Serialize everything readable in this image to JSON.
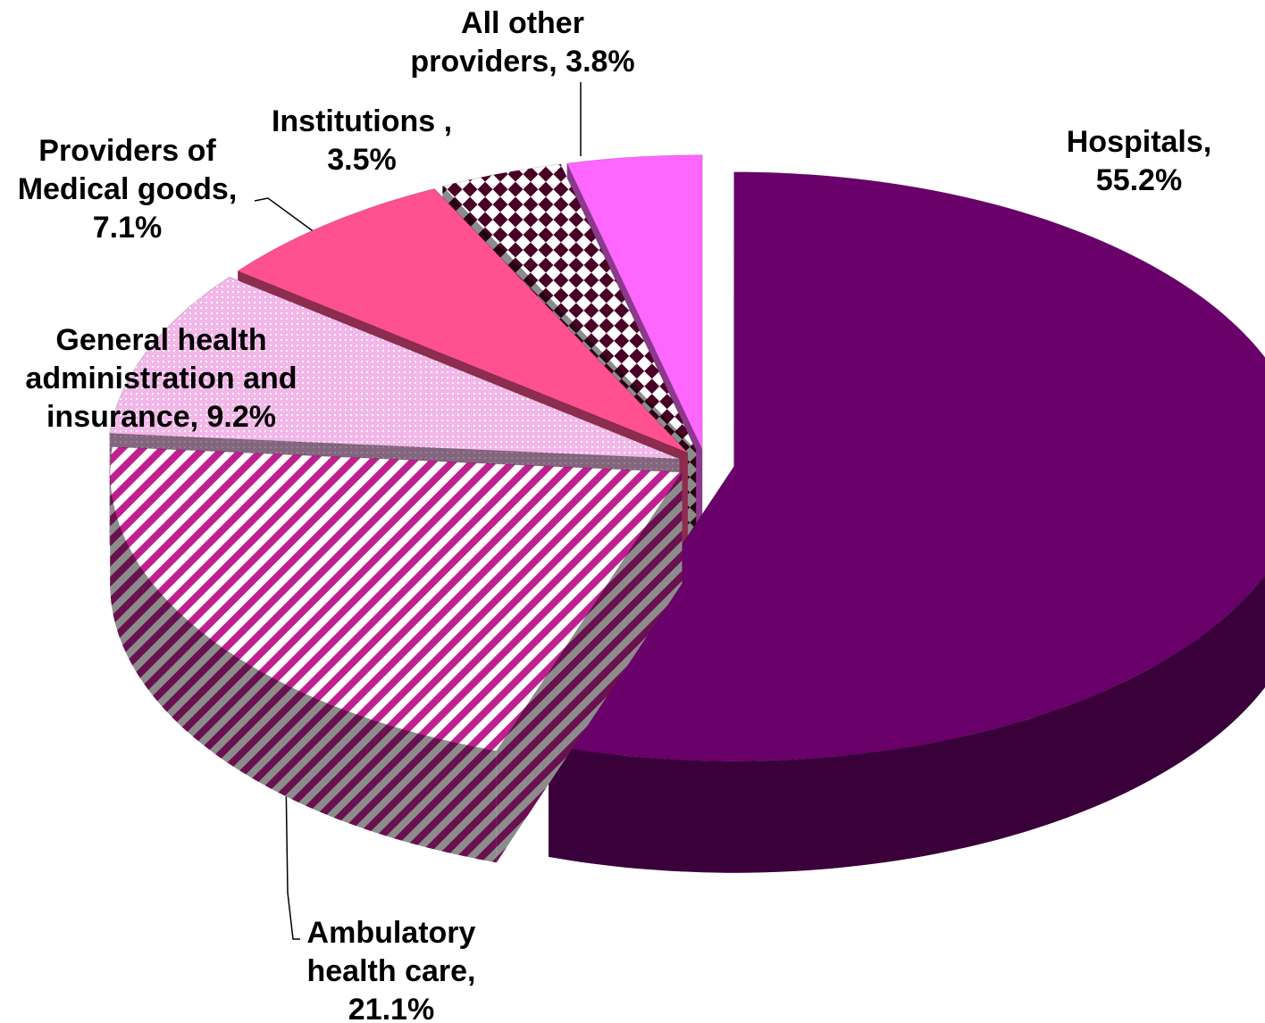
{
  "chart_data": {
    "type": "pie",
    "three_d": true,
    "exploded": true,
    "categories": [
      "Hospitals,",
      "Ambulatory health care,",
      "General health administration and insurance,",
      "Providers of Medical goods,",
      "Institutions ,",
      "All other providers,"
    ],
    "values": [
      55.2,
      21.1,
      9.2,
      7.1,
      3.5,
      3.8
    ],
    "value_labels": [
      "55.2%",
      "21.1%",
      "9.2%",
      "7.1%",
      "3.5%",
      "3.8%"
    ],
    "colors": [
      "#6a006a",
      "#c0208f",
      "#f2b6e8",
      "#ff5090",
      "#4a0025",
      "#ff66ff"
    ],
    "patterns": [
      "solid",
      "stripes",
      "dots",
      "solid",
      "checker",
      "solid"
    ]
  }
}
